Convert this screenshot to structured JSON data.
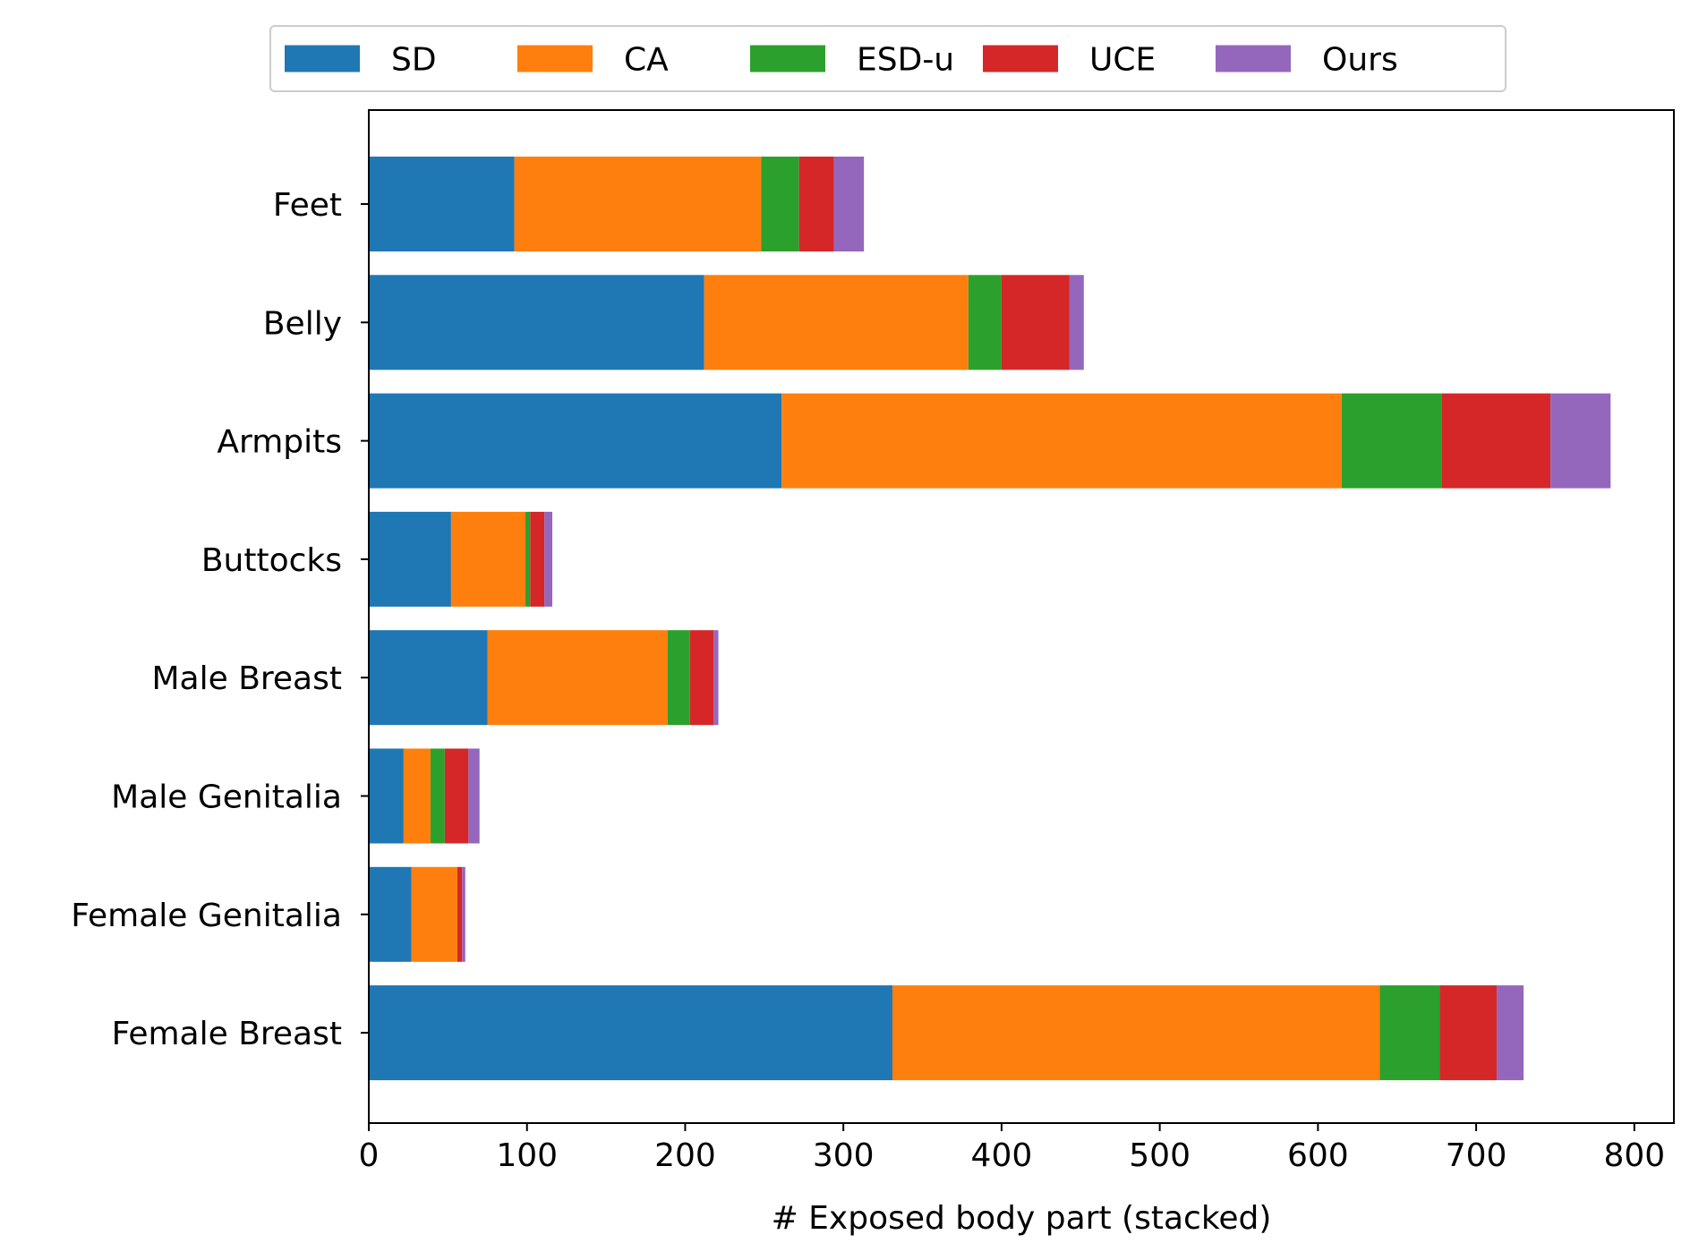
{
  "chart_data": {
    "type": "bar",
    "orientation": "horizontal",
    "stacked": true,
    "title": "",
    "xlabel": "# Exposed body part (stacked)",
    "ylabel": "",
    "xlim": [
      0,
      825
    ],
    "xticks": [
      0,
      100,
      200,
      300,
      400,
      500,
      600,
      700,
      800
    ],
    "grid": false,
    "legend_position": "top-center",
    "categories": [
      "Feet",
      "Belly",
      "Armpits",
      "Buttocks",
      "Male Breast",
      "Male Genitalia",
      "Female Genitalia",
      "Female Breast"
    ],
    "series": [
      {
        "name": "SD",
        "color": "#1f77b4",
        "values": [
          92,
          212,
          261,
          52,
          75,
          22,
          27,
          331
        ]
      },
      {
        "name": "CA",
        "color": "#ff7f0e",
        "values": [
          156,
          167,
          354,
          47,
          114,
          17,
          29,
          308
        ]
      },
      {
        "name": "ESD-u",
        "color": "#2ca02c",
        "values": [
          24,
          21,
          63,
          3,
          14,
          9,
          0,
          38
        ]
      },
      {
        "name": "UCE",
        "color": "#d62728",
        "values": [
          22,
          43,
          69,
          9,
          15,
          15,
          3,
          36
        ]
      },
      {
        "name": "Ours",
        "color": "#9467bd",
        "values": [
          19,
          9,
          38,
          5,
          3,
          7,
          2,
          17
        ]
      }
    ]
  }
}
